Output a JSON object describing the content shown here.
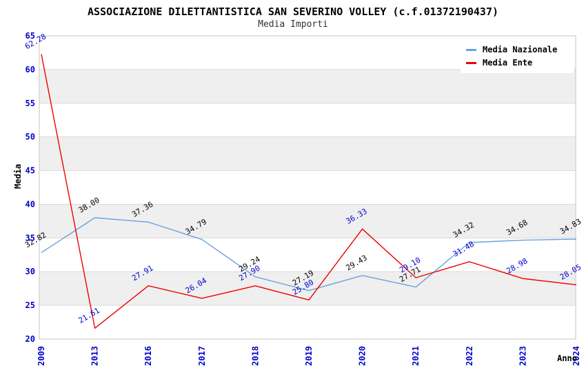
{
  "header": {
    "title": "ASSOCIAZIONE DILETTANTISTICA SAN SEVERINO VOLLEY (c.f.01372190437)",
    "subtitle": "Media Importi"
  },
  "chart_data": {
    "type": "line",
    "title": "ASSOCIAZIONE DILETTANTISTICA SAN SEVERINO VOLLEY (c.f.01372190437)",
    "subtitle": "Media Importi",
    "xlabel": "Anno",
    "ylabel": "Media",
    "categories": [
      "2009",
      "2013",
      "2016",
      "2017",
      "2018",
      "2019",
      "2020",
      "2021",
      "2022",
      "2023",
      "2024"
    ],
    "series": [
      {
        "name": "Media Nazionale",
        "color": "#6aa2dd",
        "label_color": "#000000",
        "values": [
          32.82,
          38.0,
          37.36,
          34.79,
          29.24,
          27.19,
          29.43,
          27.71,
          34.32,
          34.68,
          34.83
        ]
      },
      {
        "name": "Media Ente",
        "color": "#ee0000",
        "label_color": "#0000cc",
        "values": [
          62.28,
          21.61,
          27.91,
          26.04,
          27.9,
          25.8,
          36.33,
          29.1,
          31.48,
          28.98,
          28.05
        ]
      }
    ],
    "ylim": [
      20,
      65
    ],
    "yticks": [
      20,
      25,
      30,
      35,
      40,
      45,
      50,
      55,
      60,
      65
    ],
    "grid": "horizontal-bands",
    "legend_position": "top-right",
    "colors": {
      "axis_tick_label": "#0000cc",
      "band_fill": "#efefef",
      "gridline": "#d9d9d9",
      "plot_border": "#c4c4c4",
      "title_text": "#000000",
      "subtitle_text": "#333333"
    },
    "data_label_decimals": 2
  }
}
